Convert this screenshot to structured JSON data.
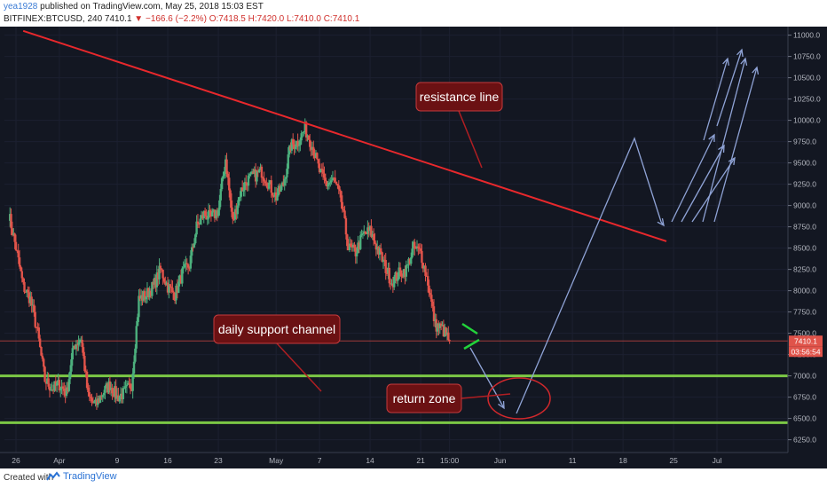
{
  "header": {
    "username": "yea1928",
    "published_text": "published on TradingView.com, May 25, 2018 15:03 EST",
    "symbol_line": "BITFINEX:BTCUSD, 240",
    "last_price": "7410.1",
    "change": "▼ −166.6 (−2.2%)",
    "ohlc": "O:7418.5 H:7420.0 L:7410.0 C:7410.1"
  },
  "footer": {
    "created_with": "Created with",
    "brand": "TradingView"
  },
  "colors": {
    "background": "#131722",
    "up_candle": "#4caf7d",
    "down_candle": "#e0534a",
    "resistance": "#e8282c",
    "support": "#7cc845",
    "projection": "#8fa3d6",
    "label_bg": "#6b1113"
  },
  "chart_data": {
    "type": "candlestick",
    "ylim": [
      6100,
      11100
    ],
    "y_ticks": [
      6250,
      6500,
      6750,
      7000,
      7250,
      7500,
      7750,
      8000,
      8250,
      8500,
      8750,
      9000,
      9250,
      9500,
      9750,
      10000,
      10250,
      10500,
      10750,
      11000
    ],
    "y_tick_labels": [
      "6250.0",
      "6500.0",
      "6750.0",
      "7000.0",
      "7250.0",
      "7500.0",
      "7750.0",
      "8000.0",
      "8250.0",
      "8500.0",
      "8750.0",
      "9000.0",
      "9250.0",
      "9500.0",
      "9750.0",
      "10000.0",
      "10250.0",
      "10500.0",
      "10750.0",
      "11000.0"
    ],
    "x_ticks": [
      {
        "label": "26",
        "date": "2018-03-26"
      },
      {
        "label": "Apr",
        "date": "2018-04-01"
      },
      {
        "label": "9",
        "date": "2018-04-09"
      },
      {
        "label": "16",
        "date": "2018-04-16"
      },
      {
        "label": "23",
        "date": "2018-04-23"
      },
      {
        "label": "May",
        "date": "2018-05-01"
      },
      {
        "label": "7",
        "date": "2018-05-07"
      },
      {
        "label": "14",
        "date": "2018-05-14"
      },
      {
        "label": "21",
        "date": "2018-05-21"
      },
      {
        "label": "15:00",
        "date": "2018-05-25"
      },
      {
        "label": "Jun",
        "date": "2018-06-01"
      },
      {
        "label": "11",
        "date": "2018-06-11"
      },
      {
        "label": "18",
        "date": "2018-06-18"
      },
      {
        "label": "25",
        "date": "2018-06-25"
      },
      {
        "label": "Jul",
        "date": "2018-07-01"
      }
    ],
    "price_path": [
      [
        "2018-03-25",
        8900
      ],
      [
        "2018-03-26",
        8500
      ],
      [
        "2018-03-27",
        8050
      ],
      [
        "2018-03-28",
        7900
      ],
      [
        "2018-03-29",
        7500
      ],
      [
        "2018-03-30",
        6950
      ],
      [
        "2018-03-31",
        6850
      ],
      [
        "2018-04-01",
        6900
      ],
      [
        "2018-04-02",
        6800
      ],
      [
        "2018-04-03",
        7350
      ],
      [
        "2018-04-04",
        7450
      ],
      [
        "2018-04-05",
        6750
      ],
      [
        "2018-04-06",
        6650
      ],
      [
        "2018-04-07",
        6800
      ],
      [
        "2018-04-08",
        6900
      ],
      [
        "2018-04-09",
        6750
      ],
      [
        "2018-04-10",
        6800
      ],
      [
        "2018-04-11",
        6900
      ],
      [
        "2018-04-12",
        7900
      ],
      [
        "2018-04-13",
        7950
      ],
      [
        "2018-04-14",
        8050
      ],
      [
        "2018-04-15",
        8250
      ],
      [
        "2018-04-16",
        8050
      ],
      [
        "2018-04-17",
        7950
      ],
      [
        "2018-04-18",
        8200
      ],
      [
        "2018-04-19",
        8300
      ],
      [
        "2018-04-20",
        8750
      ],
      [
        "2018-04-21",
        8900
      ],
      [
        "2018-04-22",
        8850
      ],
      [
        "2018-04-23",
        8950
      ],
      [
        "2018-04-24",
        9550
      ],
      [
        "2018-04-25",
        8800
      ],
      [
        "2018-04-26",
        9150
      ],
      [
        "2018-04-27",
        9300
      ],
      [
        "2018-04-28",
        9350
      ],
      [
        "2018-04-29",
        9400
      ],
      [
        "2018-04-30",
        9250
      ],
      [
        "2018-05-01",
        9100
      ],
      [
        "2018-05-02",
        9250
      ],
      [
        "2018-05-03",
        9700
      ],
      [
        "2018-05-04",
        9750
      ],
      [
        "2018-05-05",
        9900
      ],
      [
        "2018-05-06",
        9700
      ],
      [
        "2018-05-07",
        9400
      ],
      [
        "2018-05-08",
        9250
      ],
      [
        "2018-05-09",
        9300
      ],
      [
        "2018-05-10",
        9050
      ],
      [
        "2018-05-11",
        8500
      ],
      [
        "2018-05-12",
        8450
      ],
      [
        "2018-05-13",
        8650
      ],
      [
        "2018-05-14",
        8700
      ],
      [
        "2018-05-15",
        8500
      ],
      [
        "2018-05-16",
        8300
      ],
      [
        "2018-05-17",
        8100
      ],
      [
        "2018-05-18",
        8200
      ],
      [
        "2018-05-19",
        8250
      ],
      [
        "2018-05-20",
        8500
      ],
      [
        "2018-05-21",
        8450
      ],
      [
        "2018-05-22",
        8100
      ],
      [
        "2018-05-23",
        7600
      ],
      [
        "2018-05-24",
        7550
      ],
      [
        "2018-05-25",
        7410
      ]
    ],
    "resistance_line": {
      "label": "resistance line",
      "from": [
        "2018-03-27",
        11050
      ],
      "to": [
        "2018-06-24",
        8580
      ]
    },
    "support_lines": [
      7000,
      6450
    ],
    "current_price_line": 7410,
    "price_badge": "7410.1",
    "countdown_badge": "03:56:54",
    "annotations": [
      {
        "text": "resistance line"
      },
      {
        "text": "daily support channel"
      },
      {
        "text": "return zone"
      }
    ]
  }
}
